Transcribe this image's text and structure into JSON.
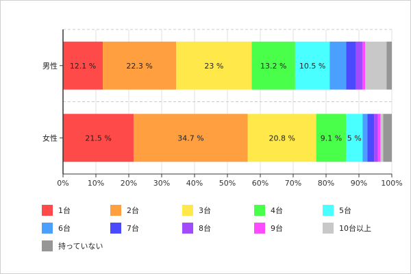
{
  "chart_data": {
    "type": "bar",
    "orientation": "horizontal",
    "stacked": true,
    "percent": true,
    "categories": [
      "男性",
      "女性"
    ],
    "series": [
      {
        "name": "1台",
        "color": "#ff4a4a",
        "values": [
          12.1,
          21.5
        ],
        "labels": [
          "12.1 %",
          "21.5 %"
        ]
      },
      {
        "name": "2台",
        "color": "#ff9f40",
        "values": [
          22.3,
          34.7
        ],
        "labels": [
          "22.3 %",
          "34.7 %"
        ]
      },
      {
        "name": "3台",
        "color": "#ffe84a",
        "values": [
          23.0,
          20.8
        ],
        "labels": [
          "23 %",
          "20.8 %"
        ]
      },
      {
        "name": "4台",
        "color": "#4aff4a",
        "values": [
          13.2,
          9.1
        ],
        "labels": [
          "13.2 %",
          "9.1 %"
        ]
      },
      {
        "name": "5台",
        "color": "#4affff",
        "values": [
          10.5,
          5.0
        ],
        "labels": [
          "10.5 %",
          "5 %"
        ]
      },
      {
        "name": "6台",
        "color": "#4a9fff",
        "values": [
          5.0,
          1.5
        ],
        "labels": [
          "",
          ""
        ]
      },
      {
        "name": "7台",
        "color": "#4a4aff",
        "values": [
          3.0,
          2.0
        ],
        "labels": [
          "",
          ""
        ]
      },
      {
        "name": "8台",
        "color": "#a34aff",
        "values": [
          2.0,
          1.2
        ],
        "labels": [
          "",
          ""
        ]
      },
      {
        "name": "9台",
        "color": "#ff4aff",
        "values": [
          0.8,
          0.8
        ],
        "labels": [
          "",
          ""
        ]
      },
      {
        "name": "10台以上",
        "color": "#c8c8c8",
        "values": [
          6.5,
          0.8
        ],
        "labels": [
          "",
          ""
        ]
      },
      {
        "name": "持っていない",
        "color": "#969696",
        "values": [
          1.6,
          2.6
        ],
        "labels": [
          "",
          ""
        ]
      }
    ],
    "x_ticks": [
      "0%",
      "10%",
      "20%",
      "30%",
      "40%",
      "50%",
      "60%",
      "70%",
      "80%",
      "90%",
      "100%"
    ],
    "xlim": [
      0,
      100
    ],
    "grid": true,
    "legend_position": "bottom"
  }
}
